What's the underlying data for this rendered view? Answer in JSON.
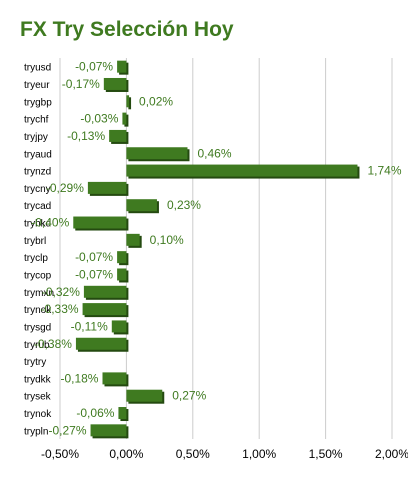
{
  "chart_data": {
    "type": "bar",
    "orientation": "horizontal",
    "title": "FX Try Selección Hoy",
    "xlabel": "",
    "ylabel": "",
    "categories": [
      "tryusd",
      "tryeur",
      "trygbp",
      "trychf",
      "tryjpy",
      "tryaud",
      "trynzd",
      "trycny",
      "trycad",
      "tryhkd",
      "trybrl",
      "tryclp",
      "trycop",
      "trymxn",
      "trynok",
      "trysgd",
      "tryrub",
      "trytry",
      "trydkk",
      "trysek",
      "trynok",
      "trypln"
    ],
    "values": [
      -0.07,
      -0.17,
      0.02,
      -0.03,
      -0.13,
      0.46,
      1.74,
      -0.29,
      0.23,
      -0.4,
      0.1,
      -0.07,
      -0.07,
      -0.32,
      -0.33,
      -0.11,
      -0.38,
      null,
      -0.18,
      0.27,
      -0.06,
      -0.27
    ],
    "value_labels": [
      "-0,07%",
      "-0,17%",
      "0,02%",
      "-0,03%",
      "-0,13%",
      "0,46%",
      "1,74%",
      "-0,29%",
      "0,23%",
      "-0,40%",
      "0,10%",
      "-0,07%",
      "-0,07%",
      "-0,32%",
      "-0,33%",
      "-0,11%",
      "-0,38%",
      "",
      "-0,18%",
      "0,27%",
      "-0,06%",
      "-0,27%"
    ],
    "xlim": [
      -0.5,
      2.0
    ],
    "xticks": [
      -0.5,
      0,
      0.5,
      1.0,
      1.5,
      2.0
    ],
    "xtick_labels": [
      "-0,50%",
      "0,00%",
      "0,50%",
      "1,00%",
      "1,50%",
      "2,00%"
    ],
    "grid": "vertical",
    "legend": "none",
    "colors": {
      "bar": "#3f7a20",
      "bar_shadow": "#244a10",
      "label": "#3f7a20",
      "grid": "#cccccc",
      "title": "#3f7a20"
    }
  }
}
